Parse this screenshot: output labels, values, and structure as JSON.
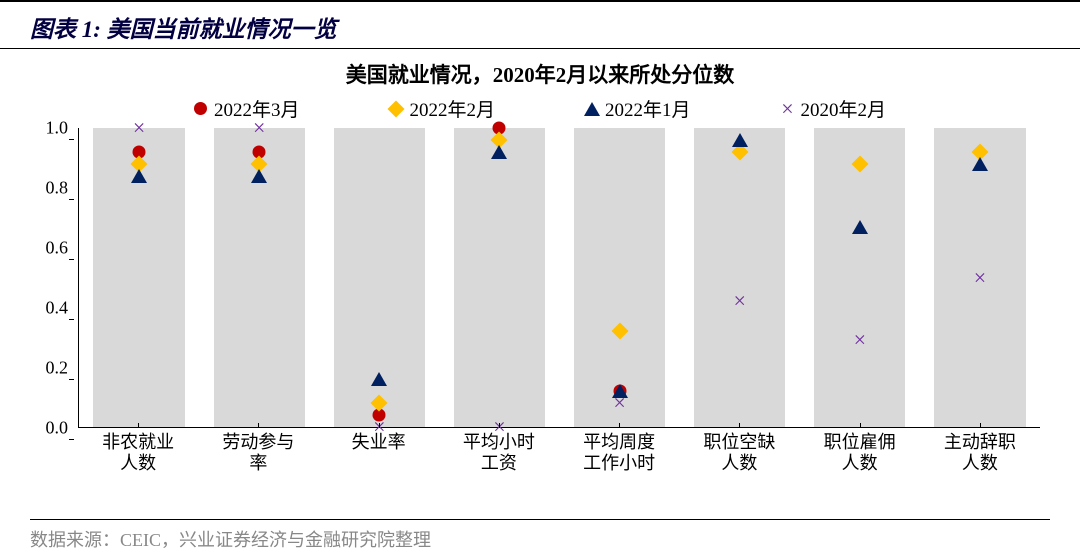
{
  "header": {
    "title": "图表 1:  美国当前就业情况一览"
  },
  "chart": {
    "type": "scatter-over-bars",
    "title": "美国就业情况，2020年2月以来所处分位数",
    "background_color": "#ffffff",
    "bar_color": "#d9d9d9",
    "series": [
      {
        "label": "2022年3月",
        "marker": "circle",
        "color": "#c00000"
      },
      {
        "label": "2022年2月",
        "marker": "diamond",
        "color": "#ffc000"
      },
      {
        "label": "2022年1月",
        "marker": "triangle",
        "color": "#002060"
      },
      {
        "label": "2020年2月",
        "marker": "x",
        "color": "#7030a0"
      }
    ],
    "categories": [
      "非农就业人数",
      "劳动参与率",
      "失业率",
      "平均小时工资",
      "平均周度工作小时",
      "职位空缺人数",
      "职位雇佣人数",
      "主动辞职人数"
    ],
    "category_labels_2line": [
      [
        "非农就业",
        "人数"
      ],
      [
        "劳动参与",
        "率"
      ],
      [
        "失业率",
        ""
      ],
      [
        "平均小时",
        "工资"
      ],
      [
        "平均周度",
        "工作小时"
      ],
      [
        "职位空缺",
        "人数"
      ],
      [
        "职位雇佣",
        "人数"
      ],
      [
        "主动辞职",
        "人数"
      ]
    ],
    "data": {
      "2022年3月": [
        0.92,
        0.92,
        0.04,
        1.0,
        0.12,
        null,
        null,
        null
      ],
      "2022年2月": [
        0.88,
        0.88,
        0.08,
        0.96,
        0.32,
        0.92,
        0.88,
        0.92
      ],
      "2022年1月": [
        0.84,
        0.84,
        0.16,
        0.92,
        0.12,
        0.96,
        0.67,
        0.88
      ],
      "2020年2月": [
        1.0,
        1.0,
        0.0,
        0.0,
        0.08,
        0.42,
        0.29,
        0.5
      ]
    },
    "ylim": [
      0.0,
      1.0
    ],
    "ytick_step": 0.2,
    "label_fontsize": 18,
    "title_fontsize": 21,
    "axis_color": "#000000"
  },
  "footer": {
    "source": "数据来源：CEIC，兴业证券经济与金融研究院整理"
  }
}
